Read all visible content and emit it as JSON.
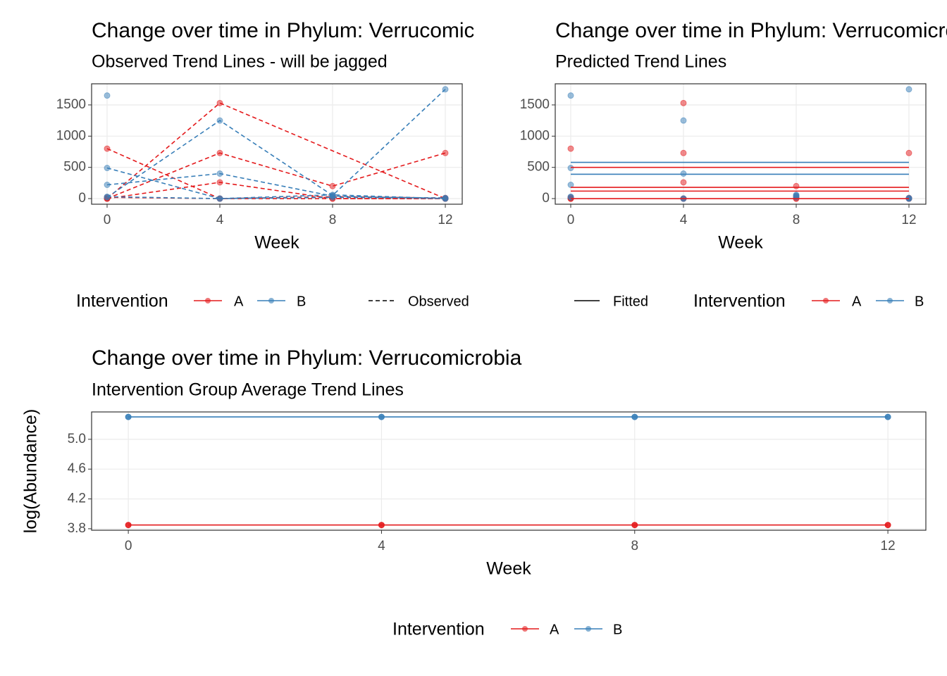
{
  "chart_data": [
    {
      "type": "line",
      "title": "Change over time in Phylum: Verrucomicrobia",
      "subtitle": "Observed Trend Lines - will be jagged",
      "x_label": "Week",
      "xlim": [
        -0.55,
        12.6
      ],
      "xticks": [
        0,
        4,
        8,
        12
      ],
      "ylim": [
        -90,
        1838
      ],
      "yticks": [
        0,
        500,
        1000,
        1500
      ],
      "grid": true,
      "line_style": "dashed",
      "legend": {
        "title": "Intervention",
        "entries": [
          {
            "name": "A",
            "color": "#e41a1c"
          },
          {
            "name": "B",
            "color": "#377eb8"
          }
        ],
        "line_label": "Observed"
      },
      "series": [
        {
          "color": "#e41a1c",
          "x": [
            0,
            4,
            8,
            12
          ],
          "values": [
            800,
            0,
            0,
            0
          ]
        },
        {
          "color": "#e41a1c",
          "x": [
            0,
            4,
            12
          ],
          "values": [
            0,
            1530,
            0
          ]
        },
        {
          "color": "#e41a1c",
          "x": [
            0,
            4,
            8,
            12
          ],
          "values": [
            0,
            730,
            200,
            730
          ]
        },
        {
          "color": "#e41a1c",
          "x": [
            0,
            4,
            8,
            12
          ],
          "values": [
            0,
            260,
            0,
            0
          ]
        },
        {
          "color": "#e41a1c",
          "x": [
            0,
            4,
            8,
            12
          ],
          "values": [
            20,
            0,
            30,
            10
          ]
        },
        {
          "color": "#377eb8",
          "x": [
            0
          ],
          "values": [
            1650
          ]
        },
        {
          "color": "#377eb8",
          "x": [
            0,
            4,
            8,
            12
          ],
          "values": [
            20,
            1250,
            50,
            1750
          ]
        },
        {
          "color": "#377eb8",
          "x": [
            0,
            4,
            8,
            12
          ],
          "values": [
            490,
            0,
            60,
            0
          ]
        },
        {
          "color": "#377eb8",
          "x": [
            0,
            4,
            8,
            12
          ],
          "values": [
            220,
            400,
            40,
            0
          ]
        },
        {
          "color": "#377eb8",
          "x": [
            0,
            4,
            8,
            12
          ],
          "values": [
            30,
            0,
            20,
            10
          ]
        }
      ]
    },
    {
      "type": "fitted",
      "title": "Change over time in Phylum: Verrucomicrobia",
      "subtitle": "Predicted Trend Lines",
      "x_label": "Week",
      "xlim": [
        -0.55,
        12.6
      ],
      "xticks": [
        0,
        4,
        8,
        12
      ],
      "ylim": [
        -90,
        1838
      ],
      "yticks": [
        0,
        500,
        1000,
        1500
      ],
      "grid": true,
      "line_style": "solid",
      "legend": {
        "title": "Intervention",
        "entries": [
          {
            "name": "A",
            "color": "#e41a1c"
          },
          {
            "name": "B",
            "color": "#377eb8"
          }
        ],
        "line_label": "Fitted"
      },
      "points": [
        {
          "color": "#e41a1c",
          "x": [
            0,
            4,
            8,
            12
          ],
          "values": [
            800,
            0,
            0,
            0
          ]
        },
        {
          "color": "#e41a1c",
          "x": [
            0,
            4,
            12
          ],
          "values": [
            0,
            1530,
            0
          ]
        },
        {
          "color": "#e41a1c",
          "x": [
            0,
            4,
            8,
            12
          ],
          "values": [
            0,
            730,
            200,
            730
          ]
        },
        {
          "color": "#e41a1c",
          "x": [
            0,
            4,
            8,
            12
          ],
          "values": [
            0,
            260,
            0,
            0
          ]
        },
        {
          "color": "#e41a1c",
          "x": [
            0,
            4,
            8,
            12
          ],
          "values": [
            20,
            0,
            30,
            10
          ]
        },
        {
          "color": "#377eb8",
          "x": [
            0
          ],
          "values": [
            1650
          ]
        },
        {
          "color": "#377eb8",
          "x": [
            0,
            4,
            8,
            12
          ],
          "values": [
            20,
            1250,
            50,
            1750
          ]
        },
        {
          "color": "#377eb8",
          "x": [
            0,
            4,
            8,
            12
          ],
          "values": [
            490,
            0,
            60,
            0
          ]
        },
        {
          "color": "#377eb8",
          "x": [
            0,
            4,
            8,
            12
          ],
          "values": [
            220,
            400,
            40,
            0
          ]
        },
        {
          "color": "#377eb8",
          "x": [
            0,
            4,
            8,
            12
          ],
          "values": [
            30,
            0,
            20,
            10
          ]
        }
      ],
      "series": [
        {
          "color": "#377eb8",
          "x": [
            0,
            12
          ],
          "values": [
            580,
            580
          ]
        },
        {
          "color": "#377eb8",
          "x": [
            0,
            12
          ],
          "values": [
            390,
            390
          ]
        },
        {
          "color": "#e41a1c",
          "x": [
            0,
            12
          ],
          "values": [
            500,
            500
          ]
        },
        {
          "color": "#e41a1c",
          "x": [
            0,
            12
          ],
          "values": [
            180,
            180
          ]
        },
        {
          "color": "#e41a1c",
          "x": [
            0,
            12
          ],
          "values": [
            120,
            120
          ]
        },
        {
          "color": "#e41a1c",
          "x": [
            0,
            12
          ],
          "values": [
            0,
            0
          ]
        }
      ]
    },
    {
      "type": "line",
      "title": "Change over time in Phylum: Verrucomicrobia",
      "subtitle": "Intervention Group Average Trend Lines",
      "x_label": "Week",
      "y_label": "log(Abundance)",
      "xlim": [
        -0.58,
        12.6
      ],
      "xticks": [
        0,
        4,
        8,
        12
      ],
      "ylim": [
        3.78,
        5.367
      ],
      "yticks": [
        3.8,
        4.2,
        4.6,
        {
          "value": 5,
          "label": "5.0"
        }
      ],
      "grid": true,
      "line_style": "solid",
      "legend": {
        "title": "Intervention",
        "entries": [
          {
            "name": "A",
            "color": "#e41a1c"
          },
          {
            "name": "B",
            "color": "#377eb8"
          }
        ]
      },
      "series": [
        {
          "color": "#e41a1c",
          "x": [
            0,
            4,
            8,
            12
          ],
          "values": [
            3.85,
            3.85,
            3.85,
            3.85
          ]
        },
        {
          "color": "#377eb8",
          "x": [
            0,
            4,
            8,
            12
          ],
          "values": [
            5.3,
            5.3,
            5.3,
            5.3
          ]
        }
      ]
    }
  ]
}
